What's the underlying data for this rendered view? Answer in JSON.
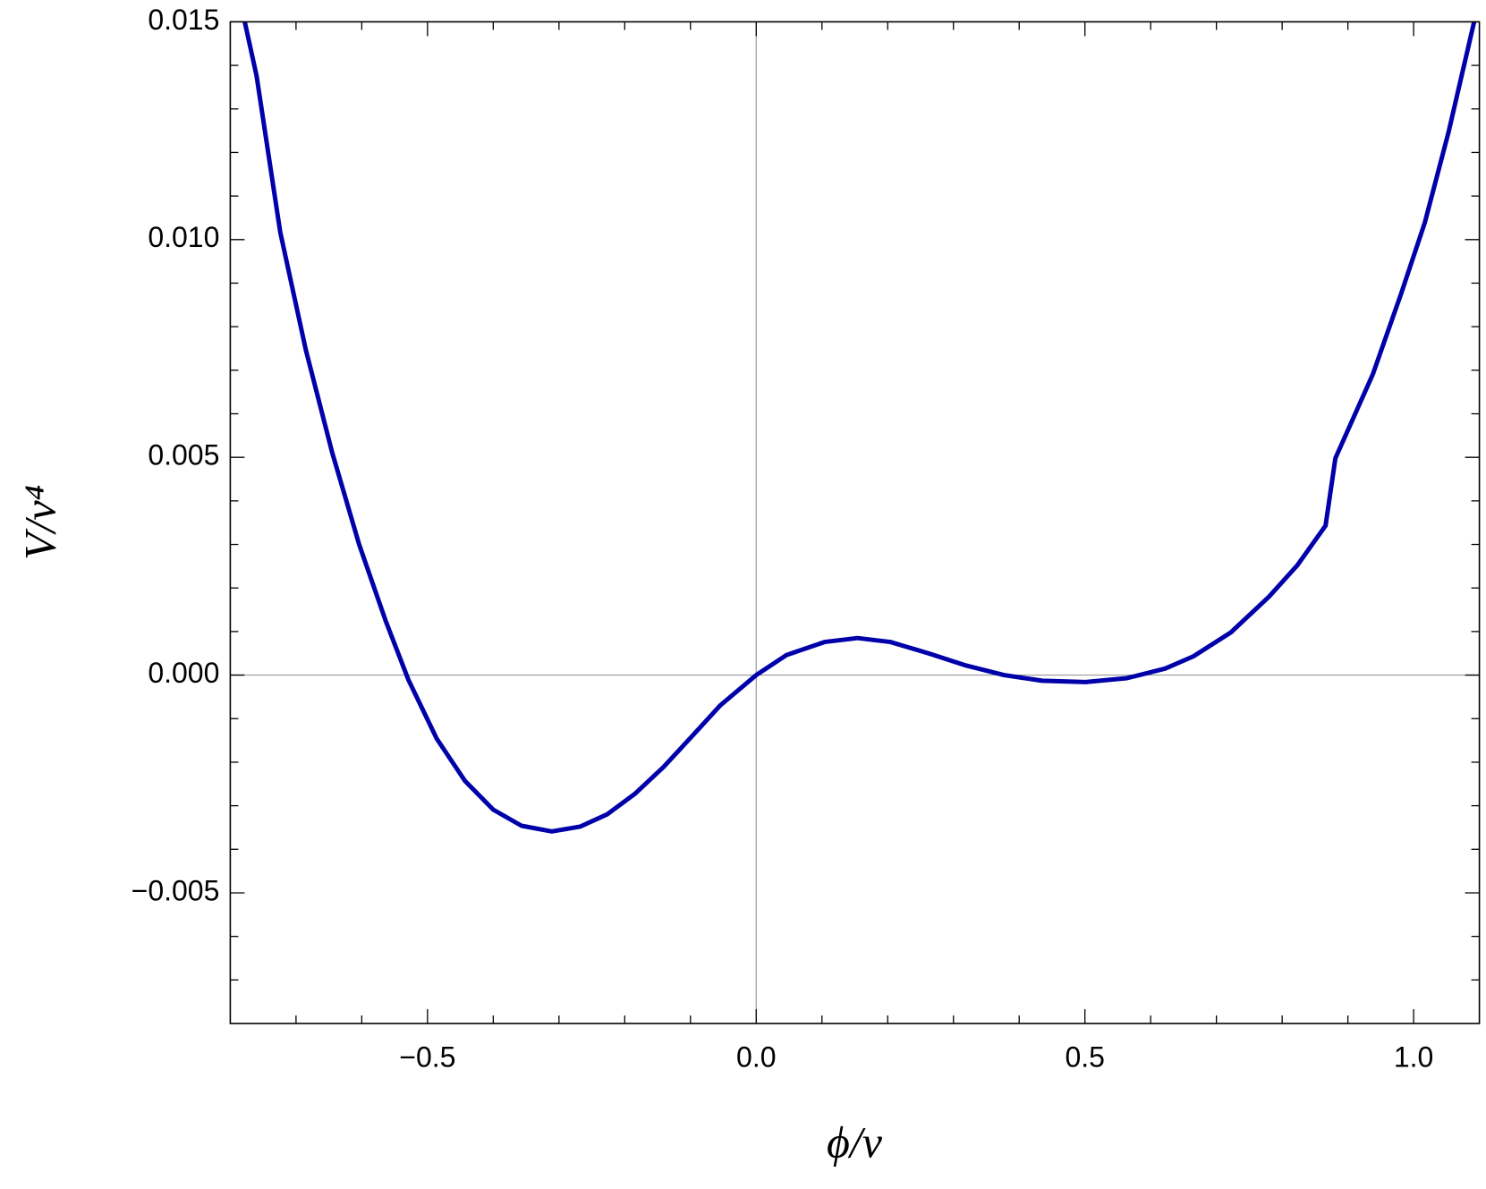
{
  "chart_data": {
    "type": "line",
    "x_label": "ϕ/v",
    "y_label": "V/v⁴",
    "series": [
      {
        "color": "#0000aa",
        "x": [
          -0.778,
          -0.76,
          -0.724,
          -0.685,
          -0.645,
          -0.604,
          -0.564,
          -0.529,
          -0.486,
          -0.443,
          -0.4,
          -0.357,
          -0.311,
          -0.268,
          -0.227,
          -0.184,
          -0.141,
          -0.098,
          -0.055,
          0,
          0.046,
          0.104,
          0.154,
          0.204,
          0.262,
          0.319,
          0.377,
          0.435,
          0.501,
          0.564,
          0.622,
          0.665,
          0.722,
          0.78,
          0.823,
          0.866,
          0.881,
          0.938,
          0.981,
          1.017,
          1.053,
          1.092
        ],
        "values": [
          0.015,
          0.01376,
          0.01017,
          0.00746,
          0.00511,
          0.003,
          0.00126,
          -0.00011,
          -0.00146,
          -0.00243,
          -0.00309,
          -0.00346,
          -0.00359,
          -0.00348,
          -0.0032,
          -0.00272,
          -0.00211,
          -0.00141,
          -0.0007,
          0,
          0.00046,
          0.00076,
          0.00085,
          0.00076,
          0.0005,
          0.00022,
          0,
          -0.00013,
          -0.00016,
          -7e-05,
          0.00015,
          0.00043,
          0.00098,
          0.0018,
          0.00252,
          0.00343,
          0.00498,
          0.00691,
          0.00876,
          0.01039,
          0.01246,
          0.015
        ]
      }
    ],
    "xlim": [
      -0.8,
      1.1
    ],
    "ylim": [
      -0.008,
      0.015
    ],
    "xticks": [
      {
        "value": -0.5,
        "label": "−0.5"
      },
      {
        "value": 0,
        "label": "0.0"
      },
      {
        "value": 0.5,
        "label": "0.5"
      },
      {
        "value": 1,
        "label": "1.0"
      }
    ],
    "yticks": [
      {
        "value": -0.005,
        "label": "−0.005"
      },
      {
        "value": 0,
        "label": "0.000"
      },
      {
        "value": 0.005,
        "label": "0.005"
      },
      {
        "value": 0.01,
        "label": "0.010"
      },
      {
        "value": 0.015,
        "label": "0.015"
      }
    ],
    "x_minor_ticks": [
      -0.7,
      -0.6,
      -0.4,
      -0.3,
      -0.2,
      -0.1,
      0.1,
      0.2,
      0.3,
      0.4,
      0.6,
      0.7,
      0.8,
      0.9
    ],
    "y_minor_ticks": [
      -0.007,
      -0.006,
      -0.004,
      -0.003,
      -0.002,
      -0.001,
      0.001,
      0.002,
      0.003,
      0.004,
      0.006,
      0.007,
      0.008,
      0.009,
      0.011,
      0.012,
      0.013,
      0.014
    ]
  }
}
